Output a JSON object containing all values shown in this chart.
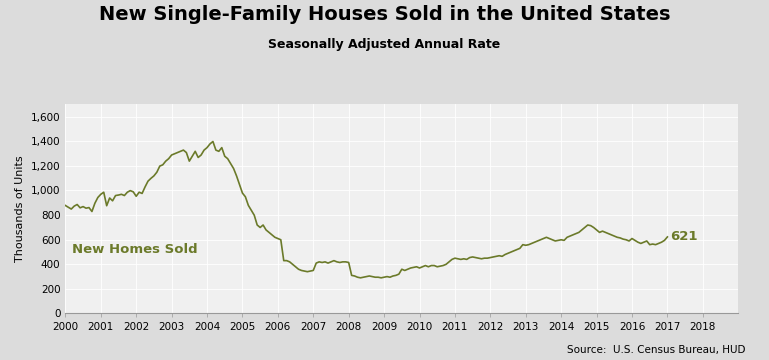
{
  "title": "New Single-Family Houses Sold in the United States",
  "subtitle": "Seasonally Adjusted Annual Rate",
  "ylabel": "Thousands of Units",
  "source": "Source:  U.S. Census Bureau, HUD",
  "label_text": "New Homes Sold",
  "last_value_label": "621",
  "line_color": "#6b7a2a",
  "label_color": "#6b7a2a",
  "bg_color": "#dcdcdc",
  "plot_bg_color": "#f0f0f0",
  "title_fontsize": 14,
  "subtitle_fontsize": 9,
  "ylabel_fontsize": 8,
  "source_fontsize": 7.5,
  "ylim": [
    0,
    1700
  ],
  "yticks": [
    0,
    200,
    400,
    600,
    800,
    1000,
    1200,
    1400,
    1600
  ],
  "ytick_labels": [
    "0",
    "200",
    "400",
    "600",
    "800",
    "1,000",
    "1,200",
    "1,400",
    "1,600"
  ],
  "data": [
    877,
    862,
    848,
    872,
    885,
    858,
    868,
    855,
    860,
    828,
    895,
    942,
    968,
    985,
    875,
    938,
    915,
    958,
    962,
    968,
    958,
    985,
    998,
    988,
    952,
    985,
    975,
    1028,
    1075,
    1098,
    1118,
    1148,
    1198,
    1208,
    1238,
    1258,
    1288,
    1298,
    1308,
    1318,
    1328,
    1308,
    1238,
    1278,
    1318,
    1268,
    1288,
    1328,
    1348,
    1378,
    1398,
    1328,
    1318,
    1348,
    1278,
    1258,
    1218,
    1178,
    1118,
    1048,
    978,
    948,
    878,
    838,
    798,
    718,
    698,
    718,
    678,
    658,
    638,
    618,
    608,
    598,
    428,
    428,
    418,
    398,
    378,
    358,
    348,
    343,
    338,
    343,
    348,
    408,
    418,
    413,
    418,
    408,
    418,
    428,
    418,
    413,
    418,
    418,
    413,
    308,
    303,
    293,
    288,
    293,
    298,
    303,
    298,
    293,
    293,
    288,
    293,
    298,
    293,
    303,
    308,
    318,
    358,
    348,
    358,
    368,
    373,
    378,
    368,
    378,
    388,
    378,
    388,
    388,
    378,
    383,
    388,
    398,
    418,
    438,
    448,
    443,
    438,
    443,
    438,
    453,
    458,
    453,
    448,
    443,
    448,
    448,
    453,
    458,
    463,
    468,
    463,
    478,
    488,
    498,
    508,
    518,
    528,
    558,
    553,
    558,
    568,
    578,
    588,
    598,
    608,
    618,
    608,
    598,
    588,
    593,
    598,
    593,
    618,
    628,
    638,
    648,
    658,
    678,
    698,
    718,
    713,
    698,
    678,
    658,
    668,
    658,
    648,
    638,
    628,
    618,
    613,
    603,
    598,
    588,
    608,
    593,
    578,
    568,
    578,
    588,
    558,
    563,
    558,
    568,
    578,
    593,
    621
  ]
}
